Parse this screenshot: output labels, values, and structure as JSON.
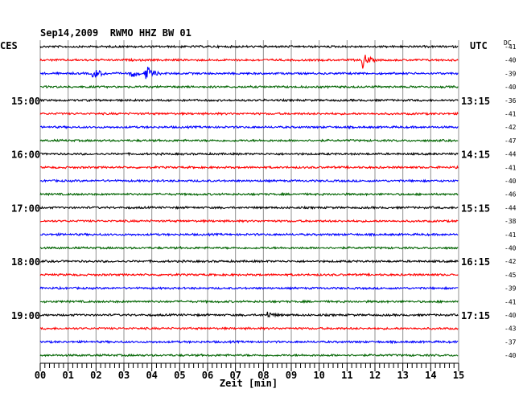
{
  "chart_data": {
    "type": "line",
    "title": "Sep14,2009  RWMO HHZ BW 01",
    "left_label": "CES",
    "right_label": "UTC",
    "dc_label": "DC",
    "xlabel": "Zeit [min]",
    "xlim": [
      0,
      15
    ],
    "x_ticks": [
      "00",
      "01",
      "02",
      "03",
      "04",
      "05",
      "06",
      "07",
      "08",
      "09",
      "10",
      "11",
      "12",
      "13",
      "14",
      "15"
    ],
    "grid": true,
    "trace_count": 24,
    "trace_colors": [
      "#000000",
      "#ff0000",
      "#0000ff",
      "#006400"
    ],
    "left_time_labels": [
      {
        "trace": 4,
        "label": "15:00"
      },
      {
        "trace": 8,
        "label": "16:00"
      },
      {
        "trace": 12,
        "label": "17:00"
      },
      {
        "trace": 16,
        "label": "18:00"
      },
      {
        "trace": 20,
        "label": "19:00"
      }
    ],
    "right_time_labels": [
      {
        "trace": 4,
        "label": "13:15"
      },
      {
        "trace": 8,
        "label": "14:15"
      },
      {
        "trace": 12,
        "label": "15:15"
      },
      {
        "trace": 16,
        "label": "16:15"
      },
      {
        "trace": 20,
        "label": "17:15"
      }
    ],
    "dc_values": [
      "-41",
      "-40",
      "-39",
      "-40",
      "-36",
      "-41",
      "-42",
      "-47",
      "-44",
      "-41",
      "-40",
      "-46",
      "-44",
      "-38",
      "-41",
      "-40",
      "-42",
      "-45",
      "-39",
      "-41",
      "-40",
      "-43",
      "-37",
      "-40"
    ],
    "events": [
      {
        "trace": 1,
        "minute": 11.55,
        "amplitude": 11
      },
      {
        "trace": 2,
        "minute": 1.9,
        "amplitude": 9
      },
      {
        "trace": 2,
        "minute": 3.25,
        "amplitude": 6
      },
      {
        "trace": 2,
        "minute": 3.8,
        "amplitude": 11
      },
      {
        "trace": 20,
        "minute": 8.15,
        "amplitude": 4
      }
    ]
  }
}
